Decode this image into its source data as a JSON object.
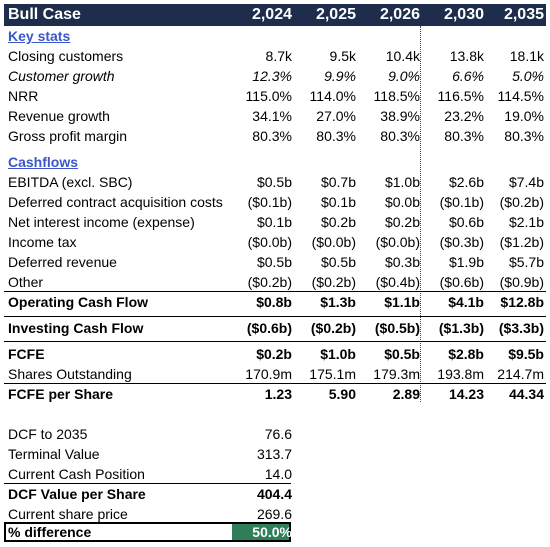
{
  "header": {
    "title": "Bull Case",
    "years": [
      "2,024",
      "2,025",
      "2,026",
      "2,030",
      "2,035"
    ]
  },
  "sections": {
    "key_stats": "Key stats",
    "cashflows": "Cashflows"
  },
  "key_stats": [
    {
      "label": "Closing customers",
      "values": [
        "8.7k",
        "9.5k",
        "10.4k",
        "13.8k",
        "18.1k"
      ]
    },
    {
      "label": "Customer growth",
      "values": [
        "12.3%",
        "9.9%",
        "9.0%",
        "6.6%",
        "5.0%"
      ]
    },
    {
      "label": "NRR",
      "values": [
        "115.0%",
        "114.0%",
        "118.5%",
        "116.5%",
        "114.5%"
      ]
    },
    {
      "label": "Revenue growth",
      "values": [
        "34.1%",
        "27.0%",
        "38.9%",
        "23.2%",
        "19.0%"
      ]
    },
    {
      "label": "Gross profit margin",
      "values": [
        "80.3%",
        "80.3%",
        "80.3%",
        "80.3%",
        "80.3%"
      ]
    }
  ],
  "cashflows": [
    {
      "label": "EBITDA (excl. SBC)",
      "values": [
        "$0.5b",
        "$0.7b",
        "$1.0b",
        "$2.6b",
        "$7.4b"
      ]
    },
    {
      "label": "Deferred contract acquisition costs",
      "values": [
        "($0.1b)",
        "$0.1b",
        "$0.0b",
        "($0.1b)",
        "($0.2b)"
      ]
    },
    {
      "label": "Net interest income (expense)",
      "values": [
        "$0.1b",
        "$0.2b",
        "$0.2b",
        "$0.6b",
        "$2.1b"
      ]
    },
    {
      "label": "Income tax",
      "values": [
        "($0.0b)",
        "($0.0b)",
        "($0.0b)",
        "($0.3b)",
        "($1.2b)"
      ]
    },
    {
      "label": "Deferred revenue",
      "values": [
        "$0.5b",
        "$0.5b",
        "$0.3b",
        "$1.9b",
        "$5.7b"
      ]
    },
    {
      "label": "Other",
      "values": [
        "($0.2b)",
        "($0.2b)",
        "($0.4b)",
        "($0.6b)",
        "($0.9b)"
      ]
    }
  ],
  "operating_cf": {
    "label": "Operating Cash Flow",
    "values": [
      "$0.8b",
      "$1.3b",
      "$1.1b",
      "$4.1b",
      "$12.8b"
    ]
  },
  "investing_cf": {
    "label": "Investing Cash Flow",
    "values": [
      "($0.6b)",
      "($0.2b)",
      "($0.5b)",
      "($1.3b)",
      "($3.3b)"
    ]
  },
  "fcfe": {
    "label": "FCFE",
    "values": [
      "$0.2b",
      "$1.0b",
      "$0.5b",
      "$2.8b",
      "$9.5b"
    ]
  },
  "shares": {
    "label": "Shares Outstanding",
    "values": [
      "170.9m",
      "175.1m",
      "179.3m",
      "193.8m",
      "214.7m"
    ]
  },
  "fcfe_per_share": {
    "label": "FCFE per Share",
    "values": [
      "1.23",
      "5.90",
      "2.89",
      "14.23",
      "44.34"
    ]
  },
  "valuation": {
    "dcf": {
      "label": "DCF to 2035",
      "value": "76.6"
    },
    "terminal": {
      "label": "Terminal Value",
      "value": "313.7"
    },
    "cash": {
      "label": "Current Cash Position",
      "value": "14.0"
    },
    "dcf_per_share": {
      "label": "DCF Value per Share",
      "value": "404.4"
    },
    "price": {
      "label": "Current share price",
      "value": "269.6"
    },
    "diff": {
      "label": "% difference",
      "value": "50.0%"
    }
  },
  "colors": {
    "header_bg": "#1f2d4d",
    "section_link": "#3b57c9",
    "highlight_green": "#2f7d59"
  }
}
